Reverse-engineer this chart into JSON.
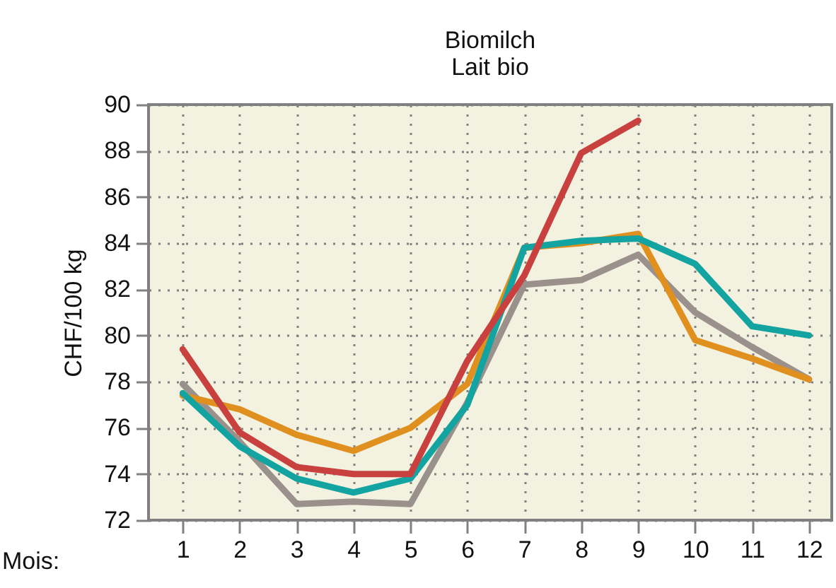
{
  "chart_data": {
    "type": "line",
    "title": "Biomilch",
    "subtitle": "Lait bio",
    "xlabel": "Mois:",
    "ylabel": "CHF/100 kg",
    "x": [
      1,
      2,
      3,
      4,
      5,
      6,
      7,
      8,
      9,
      10,
      11,
      12
    ],
    "series": [
      {
        "color": "#9a918c",
        "values": [
          77.9,
          75.4,
          72.7,
          72.8,
          72.7,
          77.1,
          82.2,
          82.4,
          83.5,
          81.0,
          79.5,
          78.1
        ]
      },
      {
        "color": "#e0901f",
        "values": [
          77.4,
          76.8,
          75.7,
          75.0,
          76.0,
          77.9,
          83.8,
          84.0,
          84.4,
          79.8,
          79.0,
          78.1
        ]
      },
      {
        "color": "#13a3a0",
        "values": [
          77.5,
          75.2,
          73.8,
          73.2,
          73.8,
          77.0,
          83.8,
          84.1,
          84.2,
          83.1,
          80.4,
          80.0
        ]
      },
      {
        "color": "#c8413f",
        "values": [
          79.4,
          75.8,
          74.3,
          74.0,
          74.0,
          78.9,
          82.6,
          87.9,
          89.3,
          null,
          null,
          null
        ]
      }
    ],
    "xlim": [
      0.4,
      12.4
    ],
    "xticks": [
      1,
      2,
      3,
      4,
      5,
      6,
      7,
      8,
      9,
      10,
      11,
      12
    ],
    "ylim": [
      72,
      90
    ],
    "yticks": [
      72,
      74,
      76,
      78,
      80,
      82,
      84,
      86,
      88,
      90
    ],
    "grid": true,
    "legend": false,
    "marker": "none",
    "line_style": "solid"
  }
}
